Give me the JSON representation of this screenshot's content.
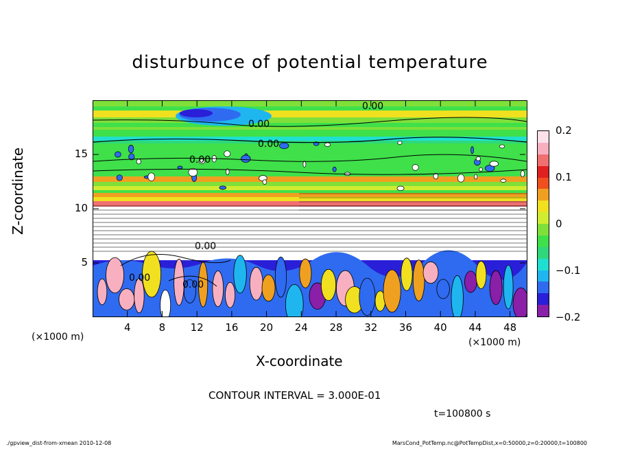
{
  "chart_data": {
    "type": "heatmap",
    "title": "disturbunce of potential temperature",
    "xlabel": "X-coordinate",
    "ylabel": "Z-coordinate",
    "x_unit_left": "(×1000 m)",
    "x_unit_right": "(×1000 m)",
    "xlim": [
      0,
      50
    ],
    "ylim": [
      0,
      20
    ],
    "x_ticks": [
      4,
      8,
      12,
      16,
      20,
      24,
      28,
      32,
      36,
      40,
      44,
      48
    ],
    "y_ticks": [
      5,
      10,
      15
    ],
    "colorbar": {
      "range": [
        -0.2,
        0.2
      ],
      "labels": [
        {
          "value": 0.2,
          "text": "0.2"
        },
        {
          "value": 0.1,
          "text": "0.1"
        },
        {
          "value": 0,
          "text": "0"
        },
        {
          "value": -0.1,
          "text": "−0.1"
        },
        {
          "value": -0.2,
          "text": "−0.2"
        }
      ],
      "colors": [
        "#8a1fa8",
        "#2a1fd8",
        "#2f6bf0",
        "#1fb6f0",
        "#1fe0d0",
        "#2fd87a",
        "#3fe04a",
        "#7fe03a",
        "#d0ec30",
        "#f0e020",
        "#f0a020",
        "#f05020",
        "#e02020",
        "#f07070",
        "#f8b0c0",
        "#fce0ea"
      ]
    },
    "contour_labels": [
      "0.00",
      "0.00",
      "0.00",
      "0.00",
      "0.00",
      "0.00",
      "0.00"
    ],
    "contour_interval": "CONTOUR INTERVAL = 3.000E-01",
    "time_label": "t=100800 s"
  },
  "footer": {
    "left": "./gpview_dist-from-xmean  2010-12-08",
    "right": "MarsCond_PotTemp.nc@PotTempDist,x=0:50000,z=0:20000,t=100800"
  }
}
